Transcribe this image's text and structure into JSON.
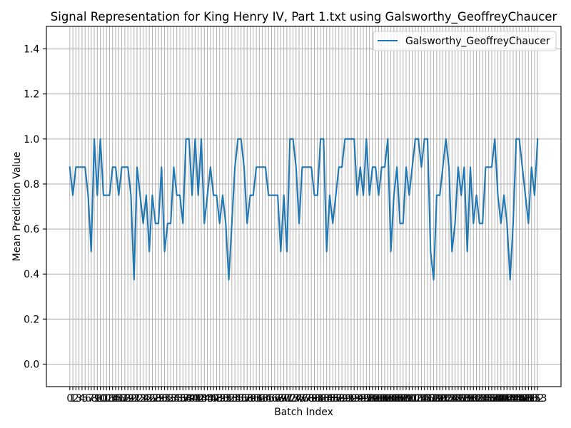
{
  "chart_data": {
    "type": "line",
    "title": "Signal Representation for King Henry IV, Part 1.txt using Galsworthy_GeoffreyChaucer",
    "xlabel": "Batch Index",
    "ylabel": "Mean Prediction Value",
    "xlim": [
      -7.65,
      160.65
    ],
    "ylim": [
      -0.1,
      1.5
    ],
    "yticks": [
      0.0,
      0.2,
      0.4,
      0.6,
      0.8,
      1.0,
      1.2,
      1.4
    ],
    "ytick_labels": [
      "0.0",
      "0.2",
      "0.4",
      "0.6",
      "0.8",
      "1.0",
      "1.2",
      "1.4"
    ],
    "grid": true,
    "legend": "top-right",
    "x": [
      0,
      1,
      2,
      3,
      4,
      5,
      6,
      7,
      8,
      9,
      10,
      11,
      12,
      13,
      14,
      15,
      16,
      17,
      18,
      19,
      20,
      21,
      22,
      23,
      24,
      25,
      26,
      27,
      28,
      29,
      30,
      31,
      32,
      33,
      34,
      35,
      36,
      37,
      38,
      39,
      40,
      41,
      42,
      43,
      44,
      45,
      46,
      47,
      48,
      49,
      50,
      51,
      52,
      53,
      54,
      55,
      56,
      57,
      58,
      59,
      60,
      61,
      62,
      63,
      64,
      65,
      66,
      67,
      68,
      69,
      70,
      71,
      72,
      73,
      74,
      75,
      76,
      77,
      78,
      79,
      80,
      81,
      82,
      83,
      84,
      85,
      86,
      87,
      88,
      89,
      90,
      91,
      92,
      93,
      94,
      95,
      96,
      97,
      98,
      99,
      100,
      101,
      102,
      103,
      104,
      105,
      106,
      107,
      108,
      109,
      110,
      111,
      112,
      113,
      114,
      115,
      116,
      117,
      118,
      119,
      120,
      121,
      122,
      123,
      124,
      125,
      126,
      127,
      128,
      129,
      130,
      131,
      132,
      133,
      134,
      135,
      136,
      137,
      138,
      139,
      140,
      141,
      142,
      143,
      144,
      145,
      146,
      147,
      148,
      149,
      150,
      151,
      152,
      153
    ],
    "series": [
      {
        "name": "Galsworthy_GeoffreyChaucer",
        "color": "#1f77b4",
        "values": [
          0.875,
          0.75,
          0.875,
          0.875,
          0.875,
          0.875,
          0.75,
          0.5,
          1.0,
          0.75,
          1.0,
          0.75,
          0.75,
          0.75,
          0.875,
          0.875,
          0.75,
          0.875,
          0.875,
          0.875,
          0.75,
          0.375,
          0.875,
          0.75,
          0.625,
          0.75,
          0.5,
          0.75,
          0.625,
          0.625,
          0.875,
          0.5,
          0.625,
          0.625,
          0.875,
          0.75,
          0.75,
          0.625,
          1.0,
          1.0,
          0.75,
          1.0,
          0.75,
          1.0,
          0.625,
          0.75,
          0.875,
          0.75,
          0.75,
          0.625,
          0.75,
          0.625,
          0.375,
          0.625,
          0.875,
          1.0,
          1.0,
          0.875,
          0.625,
          0.75,
          0.75,
          0.875,
          0.875,
          0.875,
          0.875,
          0.75,
          0.75,
          0.75,
          0.75,
          0.5,
          0.75,
          0.5,
          1.0,
          1.0,
          0.875,
          0.625,
          0.875,
          0.875,
          0.875,
          0.875,
          0.75,
          0.75,
          1.0,
          1.0,
          0.5,
          0.75,
          0.625,
          0.75,
          0.875,
          0.875,
          1.0,
          1.0,
          1.0,
          1.0,
          0.75,
          0.875,
          0.75,
          1.0,
          0.75,
          0.875,
          0.875,
          0.75,
          0.875,
          0.875,
          1.0,
          0.5,
          0.75,
          0.875,
          0.625,
          0.625,
          0.875,
          0.75,
          0.875,
          1.0,
          1.0,
          0.875,
          1.0,
          1.0,
          0.5,
          0.375,
          0.75,
          0.75,
          0.875,
          1.0,
          0.875,
          0.5,
          0.625,
          0.875,
          0.75,
          0.875,
          0.5,
          0.875,
          0.625,
          0.75,
          0.625,
          0.625,
          0.875,
          0.875,
          0.875,
          1.0,
          0.75,
          0.625,
          0.75,
          0.625,
          0.375,
          0.625,
          1.0,
          1.0,
          0.875,
          0.75,
          0.625,
          0.875,
          0.75,
          1.0
        ]
      }
    ]
  }
}
